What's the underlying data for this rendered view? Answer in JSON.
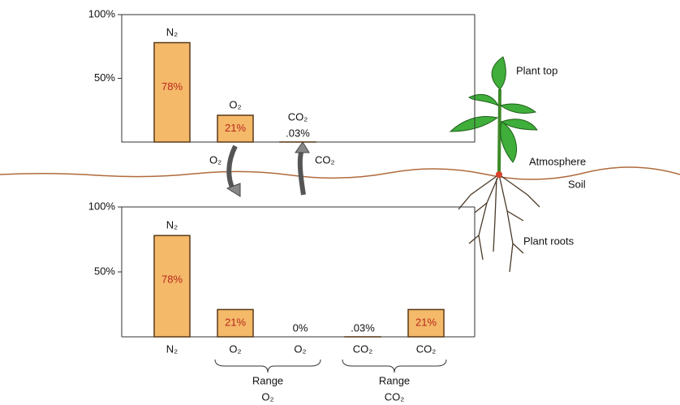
{
  "chart_data": [
    {
      "type": "bar",
      "categories": [
        "N₂",
        "O₂",
        "CO₂"
      ],
      "values": [
        78,
        21,
        0.03
      ],
      "value_labels": [
        "78%",
        "21%",
        ".03%"
      ],
      "ylim": [
        0,
        100
      ],
      "yticks": [
        {
          "value": 50,
          "label": "50%"
        },
        {
          "value": 100,
          "label": "100%"
        }
      ],
      "color": "#f4b969"
    },
    {
      "type": "bar",
      "categories": [
        "N₂",
        "O₂",
        "O₂",
        "CO₂",
        "CO₂"
      ],
      "values": [
        78,
        21,
        0,
        0.03,
        21
      ],
      "value_labels": [
        "78%",
        "21%",
        "0%",
        ".03%",
        "21%"
      ],
      "annotations": [
        "N₂"
      ],
      "groups": [
        {
          "name": "Range",
          "sub": "O₂"
        },
        {
          "name": "Range",
          "sub": "CO₂"
        }
      ],
      "ylim": [
        0,
        100
      ],
      "yticks": [
        {
          "value": 50,
          "label": "50%"
        },
        {
          "value": 100,
          "label": "100%"
        }
      ],
      "color": "#f4b969"
    }
  ],
  "labels": {
    "o2_flow": "O₂",
    "co2_flow": "CO₂",
    "plant_top": "Plant top",
    "atmosphere": "Atmosphere",
    "soil": "Soil",
    "plant_roots": "Plant roots"
  }
}
